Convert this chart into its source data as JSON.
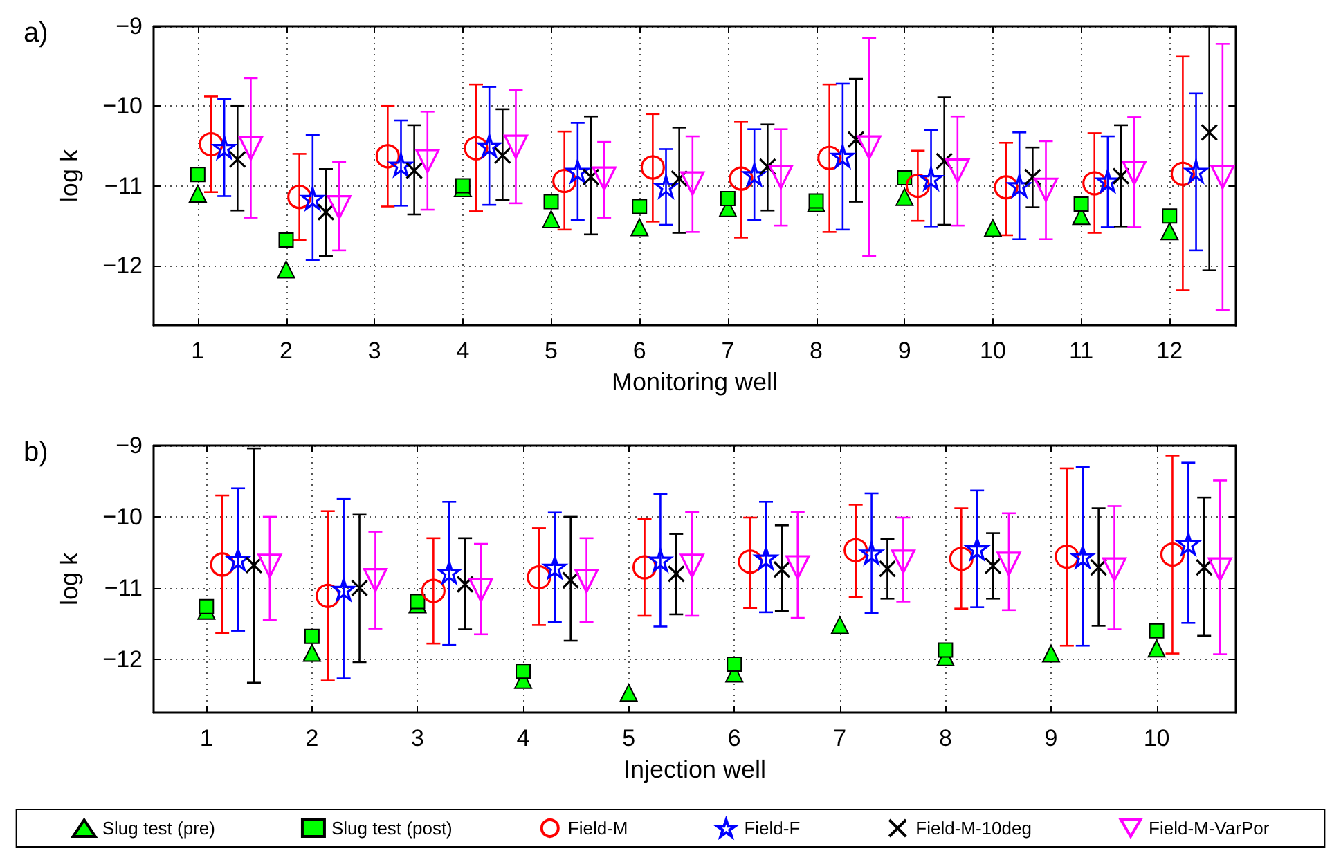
{
  "chart_data": [
    {
      "type": "scatter",
      "title": "a)",
      "xlabel": "Monitoring well",
      "ylabel": "log k",
      "xlim": [
        0.5,
        12.75
      ],
      "xticks": [
        1,
        2,
        3,
        4,
        5,
        6,
        7,
        8,
        9,
        10,
        11,
        12
      ],
      "ylim": [
        -12.75,
        -9
      ],
      "yticks": [
        {
          "value": -9,
          "label": "−9"
        },
        {
          "value": -10,
          "label": "−10"
        },
        {
          "value": -11,
          "label": "−11"
        },
        {
          "value": -12,
          "label": "−12"
        }
      ],
      "grid": true,
      "series": [
        {
          "color": "#00ff00",
          "marker": "triangle",
          "x": [
            1,
            2,
            3,
            4,
            5,
            6,
            7,
            8,
            9,
            10,
            11,
            12
          ],
          "values": [
            -11.1,
            -12.05,
            null,
            -11.03,
            -11.42,
            -11.52,
            -11.28,
            -11.22,
            -11.14,
            -11.53,
            -11.38,
            -11.57
          ]
        },
        {
          "color": "#00ff00",
          "marker": "square",
          "x": [
            1,
            2,
            3,
            4,
            5,
            6,
            7,
            8,
            9,
            10,
            11,
            12
          ],
          "values": [
            -10.86,
            -11.68,
            null,
            -11.0,
            -11.2,
            -11.26,
            -11.16,
            -11.19,
            -10.9,
            null,
            -11.23,
            -11.38
          ]
        },
        {
          "color": "#ff0000",
          "marker": "circle",
          "x": [
            1.15,
            2.15,
            3.15,
            4.15,
            5.15,
            6.15,
            7.15,
            8.15,
            9.15,
            10.15,
            11.15,
            12.15
          ],
          "values": [
            -10.48,
            -11.14,
            -10.63,
            -10.53,
            -10.94,
            -10.77,
            -10.91,
            -10.65,
            -11.0,
            -11.02,
            -10.97,
            -10.85
          ],
          "errors": [
            [
              -11.08,
              -9.88
            ],
            [
              -11.68,
              -10.6
            ],
            [
              -11.26,
              -10.0
            ],
            [
              -11.32,
              -9.73
            ],
            [
              -11.55,
              -10.32
            ],
            [
              -11.45,
              -10.1
            ],
            [
              -11.65,
              -10.2
            ],
            [
              -11.58,
              -9.73
            ],
            [
              -11.44,
              -10.56
            ],
            [
              -11.62,
              -10.46
            ],
            [
              -11.59,
              -10.34
            ],
            [
              -12.31,
              -9.38
            ]
          ]
        },
        {
          "color": "#0000ff",
          "marker": "star",
          "x": [
            1.3,
            2.3,
            3.3,
            4.3,
            5.3,
            6.3,
            7.3,
            8.3,
            9.3,
            10.3,
            11.3,
            12.3
          ],
          "values": [
            -10.52,
            -11.16,
            -10.74,
            -10.5,
            -10.82,
            -11.01,
            -10.86,
            -10.63,
            -10.91,
            -11.0,
            -10.94,
            -10.82
          ],
          "errors": [
            [
              -11.13,
              -9.91
            ],
            [
              -11.93,
              -10.36
            ],
            [
              -11.25,
              -10.18
            ],
            [
              -11.24,
              -9.76
            ],
            [
              -11.43,
              -10.21
            ],
            [
              -11.49,
              -10.54
            ],
            [
              -11.43,
              -10.29
            ],
            [
              -11.55,
              -9.72
            ],
            [
              -11.51,
              -10.3
            ],
            [
              -11.67,
              -10.33
            ],
            [
              -11.52,
              -10.38
            ],
            [
              -11.81,
              -9.84
            ]
          ]
        },
        {
          "color": "#000000",
          "marker": "cross",
          "x": [
            1.45,
            2.45,
            3.45,
            4.45,
            5.45,
            6.45,
            7.45,
            8.45,
            9.45,
            10.45,
            11.45,
            12.45
          ],
          "values": [
            -10.67,
            -11.33,
            -10.81,
            -10.62,
            -10.89,
            -10.91,
            -10.76,
            -10.42,
            -10.69,
            -10.89,
            -10.88,
            -10.33
          ],
          "errors": [
            [
              -11.31,
              -10.0
            ],
            [
              -11.88,
              -10.79
            ],
            [
              -11.36,
              -10.24
            ],
            [
              -11.18,
              -10.04
            ],
            [
              -11.61,
              -10.13
            ],
            [
              -11.59,
              -10.27
            ],
            [
              -11.31,
              -10.23
            ],
            [
              -11.2,
              -9.66
            ],
            [
              -11.49,
              -9.89
            ],
            [
              -11.27,
              -10.52
            ],
            [
              -11.51,
              -10.24
            ],
            [
              -12.06,
              -9.0
            ]
          ]
        },
        {
          "color": "#ff00ff",
          "marker": "triangle-down",
          "x": [
            1.6,
            2.6,
            3.6,
            4.6,
            5.6,
            6.6,
            7.6,
            8.6,
            9.6,
            10.6,
            11.6,
            12.6
          ],
          "values": [
            -10.53,
            -11.27,
            -10.69,
            -10.51,
            -10.91,
            -10.97,
            -10.89,
            -10.52,
            -10.81,
            -11.05,
            -10.84,
            -10.89
          ],
          "errors": [
            [
              -11.4,
              -9.65
            ],
            [
              -11.81,
              -10.7
            ],
            [
              -11.3,
              -10.07
            ],
            [
              -11.22,
              -9.8
            ],
            [
              -11.4,
              -10.45
            ],
            [
              -11.58,
              -10.38
            ],
            [
              -11.5,
              -10.29
            ],
            [
              -11.88,
              -9.15
            ],
            [
              -11.5,
              -10.13
            ],
            [
              -11.67,
              -10.44
            ],
            [
              -11.52,
              -10.14
            ],
            [
              -12.56,
              -9.22
            ]
          ]
        }
      ]
    },
    {
      "type": "scatter",
      "title": "b)",
      "xlabel": "Injection well",
      "ylabel": "log k",
      "xlim": [
        0.5,
        10.75
      ],
      "xticks": [
        1,
        2,
        3,
        4,
        5,
        6,
        7,
        8,
        9,
        10
      ],
      "ylim": [
        -12.75,
        -9
      ],
      "yticks": [
        {
          "value": -9,
          "label": "−9"
        },
        {
          "value": -10,
          "label": "−10"
        },
        {
          "value": -11,
          "label": "−11"
        },
        {
          "value": -12,
          "label": "−12"
        }
      ],
      "grid": true,
      "legend": "bottom",
      "series": [
        {
          "name": "Slug test (pre)",
          "color": "#00ff00",
          "marker": "triangle",
          "x": [
            1,
            2,
            3,
            4,
            5,
            6,
            7,
            8,
            9,
            10
          ],
          "values": [
            -11.32,
            -11.91,
            -11.23,
            -12.29,
            -12.47,
            -12.2,
            -11.52,
            -11.97,
            -11.92,
            -11.85
          ]
        },
        {
          "name": "Slug test (post)",
          "color": "#00ff00",
          "marker": "square",
          "x": [
            1,
            2,
            3,
            4,
            5,
            6,
            7,
            8,
            9,
            10
          ],
          "values": [
            -11.26,
            -11.68,
            -11.19,
            -12.17,
            null,
            -12.07,
            null,
            -11.87,
            null,
            -11.6
          ]
        },
        {
          "name": "Field-M",
          "color": "#ff0000",
          "marker": "circle",
          "x": [
            1.15,
            2.15,
            3.15,
            4.15,
            5.15,
            6.15,
            7.15,
            8.15,
            9.15,
            10.15
          ],
          "values": [
            -10.67,
            -11.11,
            -11.04,
            -10.85,
            -10.71,
            -10.63,
            -10.47,
            -10.59,
            -10.56,
            -10.53
          ],
          "errors": [
            [
              -11.63,
              -9.7
            ],
            [
              -12.3,
              -9.92
            ],
            [
              -11.78,
              -10.3
            ],
            [
              -11.52,
              -10.16
            ],
            [
              -11.39,
              -10.03
            ],
            [
              -11.28,
              -10.01
            ],
            [
              -11.13,
              -9.83
            ],
            [
              -11.29,
              -9.88
            ],
            [
              -11.81,
              -9.32
            ],
            [
              -11.92,
              -9.14
            ]
          ]
        },
        {
          "name": "Field-F",
          "color": "#0000ff",
          "marker": "star",
          "x": [
            1.3,
            2.3,
            3.3,
            4.3,
            5.3,
            6.3,
            7.3,
            8.3,
            9.3,
            10.3
          ],
          "values": [
            -10.6,
            -11.02,
            -10.78,
            -10.71,
            -10.61,
            -10.58,
            -10.51,
            -10.45,
            -10.56,
            -10.38
          ],
          "errors": [
            [
              -11.6,
              -9.6
            ],
            [
              -12.27,
              -9.75
            ],
            [
              -11.8,
              -9.79
            ],
            [
              -11.48,
              -9.94
            ],
            [
              -11.54,
              -9.68
            ],
            [
              -11.34,
              -9.79
            ],
            [
              -11.35,
              -9.67
            ],
            [
              -11.27,
              -9.63
            ],
            [
              -11.81,
              -9.3
            ],
            [
              -11.49,
              -9.24
            ]
          ]
        },
        {
          "name": "Field-M-10deg",
          "color": "#000000",
          "marker": "cross",
          "x": [
            1.45,
            2.45,
            3.45,
            4.45,
            5.45,
            6.45,
            7.45,
            8.45,
            9.45,
            10.45
          ],
          "values": [
            -10.68,
            -11.0,
            -10.95,
            -10.89,
            -10.8,
            -10.74,
            -10.73,
            -10.69,
            -10.71,
            -10.71
          ],
          "errors": [
            [
              -12.33,
              -9.04
            ],
            [
              -12.04,
              -9.97
            ],
            [
              -11.58,
              -10.3
            ],
            [
              -11.74,
              -10.0
            ],
            [
              -11.37,
              -10.24
            ],
            [
              -11.32,
              -10.12
            ],
            [
              -11.15,
              -10.31
            ],
            [
              -11.15,
              -10.23
            ],
            [
              -11.53,
              -9.88
            ],
            [
              -11.67,
              -9.73
            ]
          ]
        },
        {
          "name": "Field-M-VarPor",
          "color": "#ff00ff",
          "marker": "triangle-down",
          "x": [
            1.6,
            2.6,
            3.6,
            4.6,
            5.6,
            6.6,
            7.6,
            8.6,
            9.6,
            10.6
          ],
          "values": [
            -10.69,
            -10.89,
            -11.03,
            -10.9,
            -10.69,
            -10.71,
            -10.63,
            -10.66,
            -10.74,
            -10.74
          ],
          "errors": [
            [
              -11.45,
              -10.0
            ],
            [
              -11.57,
              -10.21
            ],
            [
              -11.65,
              -10.38
            ],
            [
              -11.48,
              -10.3
            ],
            [
              -11.39,
              -9.93
            ],
            [
              -11.42,
              -9.93
            ],
            [
              -11.19,
              -10.01
            ],
            [
              -11.31,
              -9.95
            ],
            [
              -11.58,
              -9.85
            ],
            [
              -11.93,
              -9.49
            ]
          ]
        }
      ]
    }
  ]
}
